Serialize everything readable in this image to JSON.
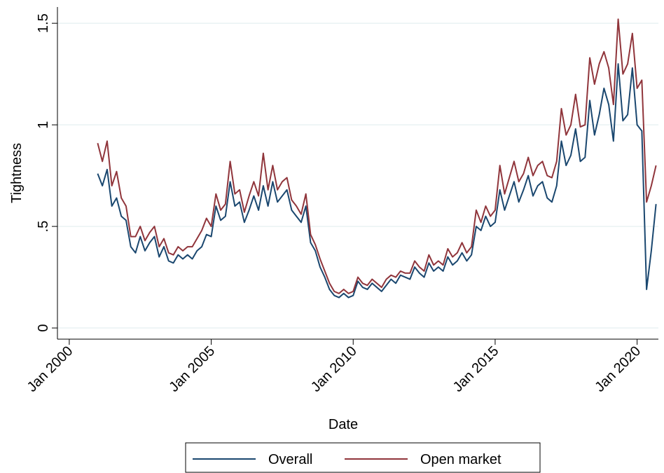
{
  "chart_data": {
    "type": "line",
    "x_label": "Date",
    "y_label": "Tightness",
    "x": [
      "2001-01",
      "2001-03",
      "2001-05",
      "2001-07",
      "2001-09",
      "2001-11",
      "2002-01",
      "2002-03",
      "2002-05",
      "2002-07",
      "2002-09",
      "2002-11",
      "2003-01",
      "2003-03",
      "2003-05",
      "2003-07",
      "2003-09",
      "2003-11",
      "2004-01",
      "2004-03",
      "2004-05",
      "2004-07",
      "2004-09",
      "2004-11",
      "2005-01",
      "2005-03",
      "2005-05",
      "2005-07",
      "2005-09",
      "2005-11",
      "2006-01",
      "2006-03",
      "2006-05",
      "2006-07",
      "2006-09",
      "2006-11",
      "2007-01",
      "2007-03",
      "2007-05",
      "2007-07",
      "2007-09",
      "2007-11",
      "2008-01",
      "2008-03",
      "2008-05",
      "2008-07",
      "2008-09",
      "2008-11",
      "2009-01",
      "2009-03",
      "2009-05",
      "2009-07",
      "2009-09",
      "2009-11",
      "2010-01",
      "2010-03",
      "2010-05",
      "2010-07",
      "2010-09",
      "2010-11",
      "2011-01",
      "2011-03",
      "2011-05",
      "2011-07",
      "2011-09",
      "2011-11",
      "2012-01",
      "2012-03",
      "2012-05",
      "2012-07",
      "2012-09",
      "2012-11",
      "2013-01",
      "2013-03",
      "2013-05",
      "2013-07",
      "2013-09",
      "2013-11",
      "2014-01",
      "2014-03",
      "2014-05",
      "2014-07",
      "2014-09",
      "2014-11",
      "2015-01",
      "2015-03",
      "2015-05",
      "2015-07",
      "2015-09",
      "2015-11",
      "2016-01",
      "2016-03",
      "2016-05",
      "2016-07",
      "2016-09",
      "2016-11",
      "2017-01",
      "2017-03",
      "2017-05",
      "2017-07",
      "2017-09",
      "2017-11",
      "2018-01",
      "2018-03",
      "2018-05",
      "2018-07",
      "2018-09",
      "2018-11",
      "2019-01",
      "2019-03",
      "2019-05",
      "2019-07",
      "2019-09",
      "2019-11",
      "2020-01",
      "2020-03",
      "2020-05",
      "2020-07",
      "2020-09"
    ],
    "series": [
      {
        "name": "Overall",
        "color": "#1a476f",
        "values": [
          0.76,
          0.7,
          0.78,
          0.6,
          0.64,
          0.55,
          0.53,
          0.4,
          0.37,
          0.45,
          0.38,
          0.42,
          0.45,
          0.35,
          0.4,
          0.33,
          0.32,
          0.36,
          0.34,
          0.36,
          0.34,
          0.38,
          0.4,
          0.46,
          0.45,
          0.6,
          0.53,
          0.55,
          0.72,
          0.6,
          0.62,
          0.52,
          0.58,
          0.65,
          0.58,
          0.7,
          0.6,
          0.72,
          0.62,
          0.65,
          0.68,
          0.58,
          0.55,
          0.52,
          0.6,
          0.42,
          0.38,
          0.3,
          0.25,
          0.19,
          0.16,
          0.15,
          0.17,
          0.15,
          0.16,
          0.23,
          0.2,
          0.19,
          0.22,
          0.2,
          0.18,
          0.21,
          0.24,
          0.22,
          0.26,
          0.25,
          0.24,
          0.3,
          0.27,
          0.25,
          0.32,
          0.28,
          0.3,
          0.28,
          0.35,
          0.31,
          0.33,
          0.37,
          0.33,
          0.36,
          0.5,
          0.48,
          0.55,
          0.5,
          0.52,
          0.68,
          0.58,
          0.65,
          0.72,
          0.62,
          0.68,
          0.75,
          0.65,
          0.7,
          0.72,
          0.64,
          0.62,
          0.7,
          0.92,
          0.8,
          0.85,
          0.98,
          0.82,
          0.84,
          1.12,
          0.95,
          1.05,
          1.18,
          1.1,
          0.92,
          1.3,
          1.02,
          1.05,
          1.28,
          1.0,
          0.97,
          0.19,
          0.38,
          0.61
        ]
      },
      {
        "name": "Open market",
        "color": "#90353b",
        "values": [
          0.91,
          0.82,
          0.92,
          0.7,
          0.77,
          0.64,
          0.6,
          0.45,
          0.45,
          0.5,
          0.43,
          0.47,
          0.5,
          0.4,
          0.44,
          0.37,
          0.36,
          0.4,
          0.38,
          0.4,
          0.4,
          0.44,
          0.48,
          0.54,
          0.5,
          0.66,
          0.58,
          0.61,
          0.82,
          0.66,
          0.68,
          0.57,
          0.65,
          0.72,
          0.65,
          0.86,
          0.68,
          0.8,
          0.68,
          0.72,
          0.74,
          0.63,
          0.6,
          0.56,
          0.66,
          0.46,
          0.41,
          0.34,
          0.28,
          0.22,
          0.18,
          0.17,
          0.19,
          0.17,
          0.18,
          0.25,
          0.22,
          0.21,
          0.24,
          0.22,
          0.2,
          0.24,
          0.26,
          0.25,
          0.28,
          0.27,
          0.27,
          0.33,
          0.3,
          0.28,
          0.36,
          0.31,
          0.33,
          0.31,
          0.39,
          0.35,
          0.37,
          0.42,
          0.37,
          0.4,
          0.58,
          0.52,
          0.6,
          0.55,
          0.58,
          0.8,
          0.66,
          0.74,
          0.82,
          0.72,
          0.76,
          0.84,
          0.75,
          0.8,
          0.82,
          0.75,
          0.74,
          0.82,
          1.08,
          0.95,
          1.0,
          1.15,
          0.99,
          1.0,
          1.33,
          1.2,
          1.3,
          1.36,
          1.28,
          1.1,
          1.52,
          1.25,
          1.3,
          1.45,
          1.18,
          1.22,
          0.62,
          0.7,
          0.8
        ]
      }
    ],
    "xlim": [
      "1999-08",
      "2020-10"
    ],
    "xticks": [
      {
        "value": "2000-01",
        "label": "Jan 2000"
      },
      {
        "value": "2005-01",
        "label": "Jan 2005"
      },
      {
        "value": "2010-01",
        "label": "Jan 2010"
      },
      {
        "value": "2015-01",
        "label": "Jan 2015"
      },
      {
        "value": "2020-01",
        "label": "Jan 2020"
      }
    ],
    "ylim": [
      -0.055,
      1.58
    ],
    "yticks": [
      0,
      {
        "value": 0.5,
        "label": ".5"
      },
      1,
      1.5
    ],
    "grid": true,
    "grid_color": "#eaf2f3",
    "legend": "bottom"
  }
}
